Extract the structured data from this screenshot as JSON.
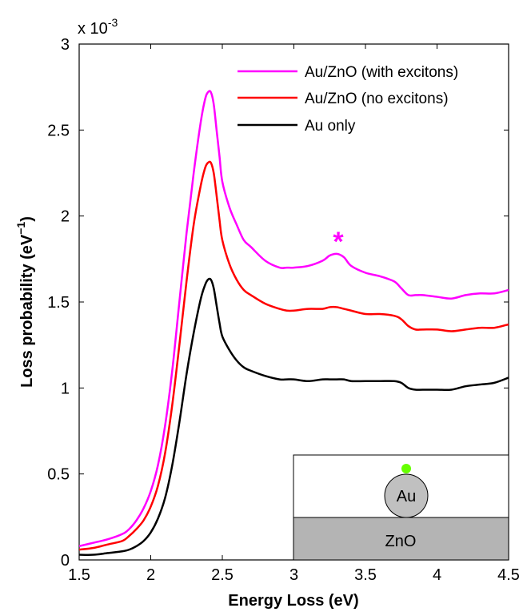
{
  "chart_data": {
    "type": "line",
    "xlabel": "Energy Loss (eV)",
    "ylabel": "Loss probability (eV",
    "ylabel_sup": "−1",
    "ylabel_close": ")",
    "y_exponent_label": "x 10",
    "y_exponent_power": "-3",
    "xlim": [
      1.5,
      4.5
    ],
    "ylim": [
      0,
      3
    ],
    "xticks": [
      1.5,
      2,
      2.5,
      3,
      3.5,
      4,
      4.5
    ],
    "xtick_labels": [
      "1.5",
      "2",
      "2.5",
      "3",
      "3.5",
      "4",
      "4.5"
    ],
    "yticks": [
      0,
      0.5,
      1,
      1.5,
      2,
      2.5,
      3
    ],
    "ytick_labels": [
      "0",
      "0.5",
      "1",
      "1.5",
      "2",
      "2.5",
      "3"
    ],
    "legend_position": "top-right",
    "grid": false,
    "annotation": {
      "text": "*",
      "x": 3.31,
      "y": 1.9,
      "color": "#ff00ff"
    },
    "series": [
      {
        "name": "Au/ZnO (with excitons)",
        "color": "#ff00ff",
        "x": [
          1.5,
          1.6,
          1.7,
          1.8,
          1.85,
          1.9,
          1.95,
          2.0,
          2.05,
          2.1,
          2.15,
          2.2,
          2.25,
          2.3,
          2.35,
          2.38,
          2.4,
          2.42,
          2.44,
          2.46,
          2.48,
          2.5,
          2.55,
          2.6,
          2.65,
          2.7,
          2.8,
          2.9,
          2.95,
          3.0,
          3.1,
          3.2,
          3.25,
          3.3,
          3.35,
          3.4,
          3.5,
          3.6,
          3.7,
          3.75,
          3.8,
          3.85,
          3.9,
          4.0,
          4.1,
          4.2,
          4.3,
          4.4,
          4.5
        ],
        "y": [
          0.08,
          0.1,
          0.12,
          0.15,
          0.18,
          0.23,
          0.3,
          0.4,
          0.55,
          0.78,
          1.1,
          1.5,
          1.9,
          2.25,
          2.55,
          2.68,
          2.72,
          2.72,
          2.65,
          2.5,
          2.35,
          2.2,
          2.05,
          1.95,
          1.86,
          1.82,
          1.74,
          1.7,
          1.7,
          1.7,
          1.71,
          1.74,
          1.77,
          1.78,
          1.76,
          1.71,
          1.67,
          1.65,
          1.62,
          1.58,
          1.54,
          1.54,
          1.54,
          1.53,
          1.52,
          1.54,
          1.55,
          1.55,
          1.57
        ]
      },
      {
        "name": "Au/ZnO (no excitons)",
        "color": "#ff0000",
        "x": [
          1.5,
          1.6,
          1.7,
          1.8,
          1.85,
          1.9,
          1.95,
          2.0,
          2.05,
          2.1,
          2.15,
          2.2,
          2.25,
          2.3,
          2.35,
          2.38,
          2.4,
          2.42,
          2.44,
          2.46,
          2.48,
          2.5,
          2.55,
          2.6,
          2.65,
          2.7,
          2.8,
          2.9,
          2.95,
          3.0,
          3.1,
          3.2,
          3.25,
          3.3,
          3.35,
          3.4,
          3.5,
          3.6,
          3.7,
          3.75,
          3.8,
          3.85,
          3.9,
          4.0,
          4.1,
          4.2,
          4.3,
          4.4,
          4.5
        ],
        "y": [
          0.06,
          0.07,
          0.09,
          0.11,
          0.14,
          0.18,
          0.23,
          0.31,
          0.43,
          0.62,
          0.9,
          1.25,
          1.62,
          1.95,
          2.18,
          2.28,
          2.31,
          2.31,
          2.25,
          2.12,
          1.98,
          1.86,
          1.72,
          1.63,
          1.57,
          1.54,
          1.49,
          1.46,
          1.45,
          1.45,
          1.46,
          1.46,
          1.47,
          1.47,
          1.46,
          1.45,
          1.43,
          1.43,
          1.42,
          1.4,
          1.36,
          1.34,
          1.34,
          1.34,
          1.33,
          1.34,
          1.35,
          1.35,
          1.37
        ]
      },
      {
        "name": "Au only",
        "color": "#000000",
        "x": [
          1.5,
          1.6,
          1.7,
          1.8,
          1.85,
          1.9,
          1.95,
          2.0,
          2.05,
          2.1,
          2.15,
          2.2,
          2.25,
          2.3,
          2.35,
          2.38,
          2.4,
          2.42,
          2.44,
          2.46,
          2.48,
          2.5,
          2.55,
          2.6,
          2.65,
          2.7,
          2.8,
          2.9,
          2.95,
          3.0,
          3.1,
          3.2,
          3.25,
          3.3,
          3.35,
          3.4,
          3.5,
          3.6,
          3.7,
          3.75,
          3.8,
          3.85,
          3.9,
          4.0,
          4.1,
          4.2,
          4.3,
          4.4,
          4.5
        ],
        "y": [
          0.03,
          0.03,
          0.04,
          0.05,
          0.06,
          0.08,
          0.11,
          0.16,
          0.24,
          0.36,
          0.55,
          0.8,
          1.08,
          1.32,
          1.52,
          1.6,
          1.63,
          1.63,
          1.58,
          1.48,
          1.38,
          1.3,
          1.22,
          1.16,
          1.12,
          1.1,
          1.07,
          1.05,
          1.05,
          1.05,
          1.04,
          1.05,
          1.05,
          1.05,
          1.05,
          1.04,
          1.04,
          1.04,
          1.04,
          1.03,
          1.0,
          0.99,
          0.99,
          0.99,
          0.99,
          1.01,
          1.02,
          1.03,
          1.06
        ]
      }
    ],
    "inset": {
      "particle_label": "Au",
      "substrate_label": "ZnO",
      "particle_color": "#c0c0c0",
      "substrate_color": "#b4b4b4",
      "probe_color": "#66ff00"
    }
  }
}
